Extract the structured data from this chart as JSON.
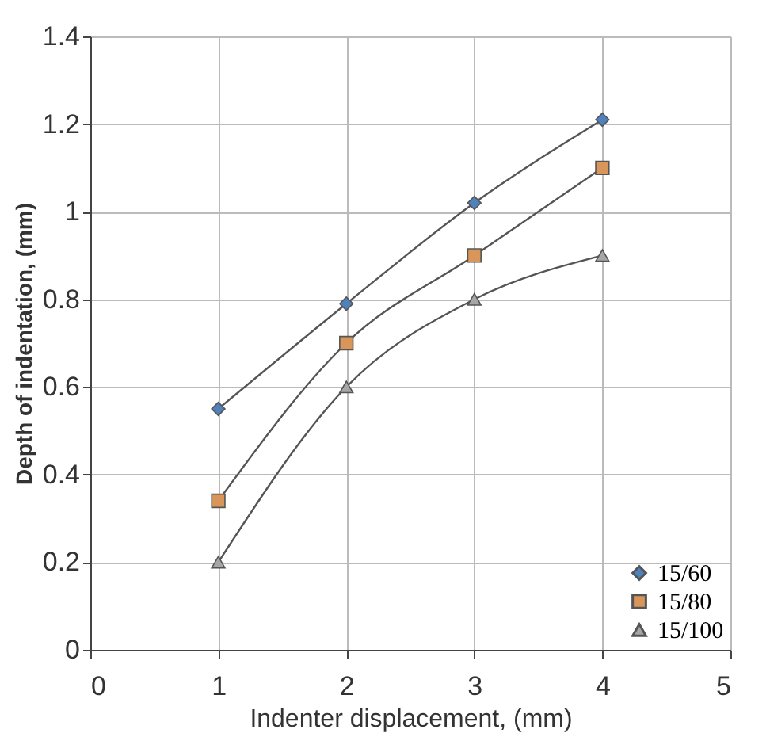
{
  "chart_data": {
    "type": "line",
    "xlabel": "Indenter displacement, (mm)",
    "ylabel": "Depth of indentation, (mm)",
    "x": [
      1,
      2,
      3,
      4
    ],
    "series": [
      {
        "name": "15/60",
        "color": "#4f81bd",
        "marker": "diamond",
        "values": [
          0.55,
          0.79,
          1.02,
          1.21
        ]
      },
      {
        "name": "15/80",
        "color": "#d8965a",
        "marker": "square",
        "values": [
          0.34,
          0.7,
          0.9,
          1.1
        ]
      },
      {
        "name": "15/100",
        "color": "#a6a6a6",
        "marker": "triangle",
        "values": [
          0.2,
          0.6,
          0.8,
          0.9
        ]
      }
    ],
    "xlim": [
      0,
      5
    ],
    "xticks": [
      0,
      1,
      2,
      3,
      4,
      5
    ],
    "ylim": [
      0,
      1.4
    ],
    "yticks": [
      0,
      0.2,
      0.4,
      0.6,
      0.8,
      1,
      1.2,
      1.4
    ],
    "grid": true,
    "legend": "bottom right"
  }
}
